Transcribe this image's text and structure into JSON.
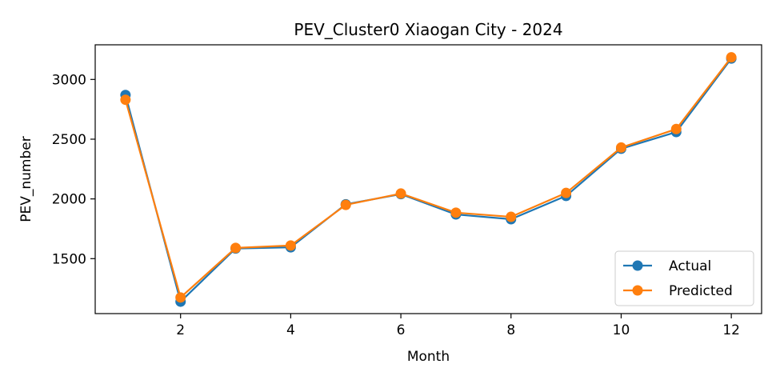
{
  "chart_data": {
    "type": "line",
    "title": "PEV_Cluster0 Xiaogan City - 2024",
    "xlabel": "Month",
    "ylabel": "PEV_number",
    "x": [
      1,
      2,
      3,
      4,
      5,
      6,
      7,
      8,
      9,
      10,
      11,
      12
    ],
    "xticks": [
      2,
      4,
      6,
      8,
      10,
      12
    ],
    "yticks": [
      1500,
      2000,
      2500,
      3000
    ],
    "xlim": [
      0.45,
      12.55
    ],
    "ylim": [
      1040,
      3290
    ],
    "grid": false,
    "legend_position": "lower-right",
    "series": [
      {
        "name": "Actual",
        "color": "#1f77b4",
        "values": [
          2870,
          1140,
          1585,
          1595,
          1955,
          2040,
          1870,
          1830,
          2025,
          2420,
          2560,
          3175
        ]
      },
      {
        "name": "Predicted",
        "color": "#ff7f0e",
        "values": [
          2830,
          1175,
          1590,
          1610,
          1950,
          2045,
          1885,
          1850,
          2050,
          2430,
          2585,
          3185
        ]
      }
    ]
  }
}
